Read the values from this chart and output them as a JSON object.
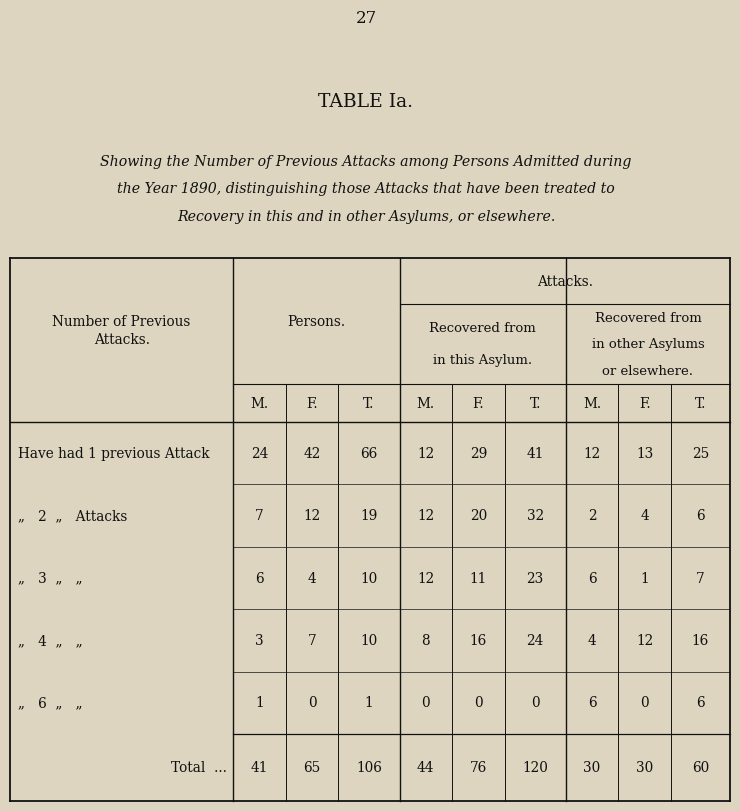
{
  "page_number": "27",
  "title": "TABLE Ia.",
  "subtitle_line1": "Showing the Number of Previous Attacks among Persons Admitted during",
  "subtitle_line2": "the Year 1890, distinguishing those Attacks that have been treated to",
  "subtitle_line3": "Recovery in this and in other Asylums, or elsewhere.",
  "bg_color": "#ddd5c0",
  "text_color": "#111111",
  "rows": [
    [
      "Have had 1 previous Attack",
      "24",
      "42",
      "66",
      "12",
      "29",
      "41",
      "12",
      "13",
      "25"
    ],
    [
      ",, 2 ,, Attacks",
      "7",
      "12",
      "19",
      "12",
      "20",
      "32",
      "2",
      "4",
      "6"
    ],
    [
      ",, 3 ,, ,,",
      "6",
      "4",
      "10",
      "12",
      "11",
      "23",
      "6",
      "1",
      "7"
    ],
    [
      ",, 4 ,, ,,",
      "3",
      "7",
      "10",
      "8",
      "16",
      "24",
      "4",
      "12",
      "16"
    ],
    [
      ",, 6 ,, ,,",
      "1",
      "0",
      "1",
      "0",
      "0",
      "0",
      "6",
      "0",
      "6"
    ]
  ],
  "total_row": [
    "Total  …",
    "41",
    "65",
    "106",
    "44",
    "76",
    "120",
    "30",
    "30",
    "60"
  ]
}
